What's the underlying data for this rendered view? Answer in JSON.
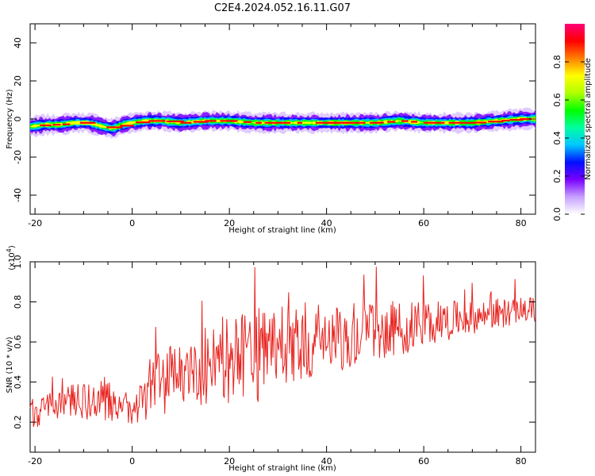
{
  "title": "C2E4.2024.052.16.11.G07",
  "colors": {
    "snr_line": "#e8231f",
    "axis": "#000000",
    "background": "#ffffff"
  },
  "chart_data": [
    {
      "type": "heatmap",
      "name": "spectrogram",
      "xlabel": "Height of straight line (km)",
      "ylabel": "Frequency (Hz)",
      "xlim": [
        -21,
        83
      ],
      "ylim": [
        -50,
        50
      ],
      "xticks": [
        "-20",
        "0",
        "20",
        "40",
        "60",
        "80"
      ],
      "yticks": [
        "-40",
        "-20",
        "0",
        "20",
        "40"
      ],
      "colorbar": {
        "label": "Normalized spectral amplitude",
        "range": [
          0,
          1
        ],
        "ticks": [
          "0.0",
          "0.2",
          "0.4",
          "0.6",
          "0.8"
        ],
        "colormap": [
          "#ffffff",
          "#c6a0ff",
          "#7a00ff",
          "#0010ff",
          "#00c8ff",
          "#00ffa0",
          "#00ff00",
          "#b0ff00",
          "#ffff00",
          "#ff8000",
          "#ff0000",
          "#ff0077"
        ]
      },
      "ridge": {
        "description": "narrow band of spectral energy near 0 Hz",
        "x": [
          -21,
          -18,
          -15,
          -12,
          -9,
          -6,
          -4,
          -2,
          0,
          3,
          6,
          10,
          15,
          20,
          25,
          30,
          35,
          40,
          45,
          50,
          55,
          60,
          65,
          70,
          75,
          80,
          83
        ],
        "y": [
          -4,
          -3,
          -3,
          -2,
          -2,
          -4,
          -5,
          -3,
          -2,
          -1,
          -1,
          -2,
          -1,
          -1,
          -2,
          -2,
          -2,
          -2,
          -2,
          -2,
          -1,
          -2,
          -2,
          -2,
          -1,
          0,
          0
        ]
      }
    },
    {
      "type": "line",
      "name": "snr",
      "xlabel": "Height of straight line (km)",
      "ylabel": "SNR (10 * v/v)",
      "y_multiplier": "(x10",
      "y_multiplier_exp": "4",
      "y_multiplier_close": ")",
      "xlim": [
        -21,
        83
      ],
      "ylim": [
        0.05,
        1.0
      ],
      "xticks": [
        "-20",
        "0",
        "20",
        "40",
        "60",
        "80"
      ],
      "yticks": [
        "0.2",
        "0.4",
        "0.6",
        "0.8",
        "1.0"
      ],
      "series": [
        {
          "x": [
            -21,
            -18,
            -15,
            -12,
            -9,
            -6,
            -3,
            0,
            2,
            4,
            6,
            8,
            10,
            12,
            14,
            16,
            18,
            20,
            22,
            24,
            26,
            28,
            30,
            32,
            34,
            36,
            38,
            40,
            42,
            44,
            46,
            48,
            50,
            52,
            54,
            56,
            58,
            60,
            62,
            64,
            66,
            68,
            70,
            72,
            74,
            76,
            78,
            80,
            83
          ],
          "trend": [
            0.22,
            0.27,
            0.3,
            0.31,
            0.3,
            0.32,
            0.27,
            0.24,
            0.34,
            0.38,
            0.4,
            0.42,
            0.44,
            0.46,
            0.47,
            0.48,
            0.5,
            0.5,
            0.51,
            0.52,
            0.54,
            0.55,
            0.57,
            0.58,
            0.59,
            0.6,
            0.61,
            0.62,
            0.63,
            0.64,
            0.64,
            0.65,
            0.65,
            0.66,
            0.66,
            0.67,
            0.68,
            0.69,
            0.7,
            0.7,
            0.71,
            0.72,
            0.72,
            0.73,
            0.74,
            0.74,
            0.75,
            0.76,
            0.76
          ],
          "amplitude": [
            0.12,
            0.1,
            0.1,
            0.1,
            0.12,
            0.16,
            0.08,
            0.12,
            0.2,
            0.2,
            0.22,
            0.2,
            0.18,
            0.2,
            0.24,
            0.26,
            0.28,
            0.3,
            0.3,
            0.3,
            0.3,
            0.3,
            0.28,
            0.26,
            0.26,
            0.24,
            0.24,
            0.22,
            0.22,
            0.22,
            0.2,
            0.2,
            0.2,
            0.18,
            0.18,
            0.16,
            0.16,
            0.14,
            0.14,
            0.12,
            0.12,
            0.1,
            0.1,
            0.1,
            0.1,
            0.1,
            0.08,
            0.08,
            0.08
          ]
        }
      ]
    }
  ]
}
